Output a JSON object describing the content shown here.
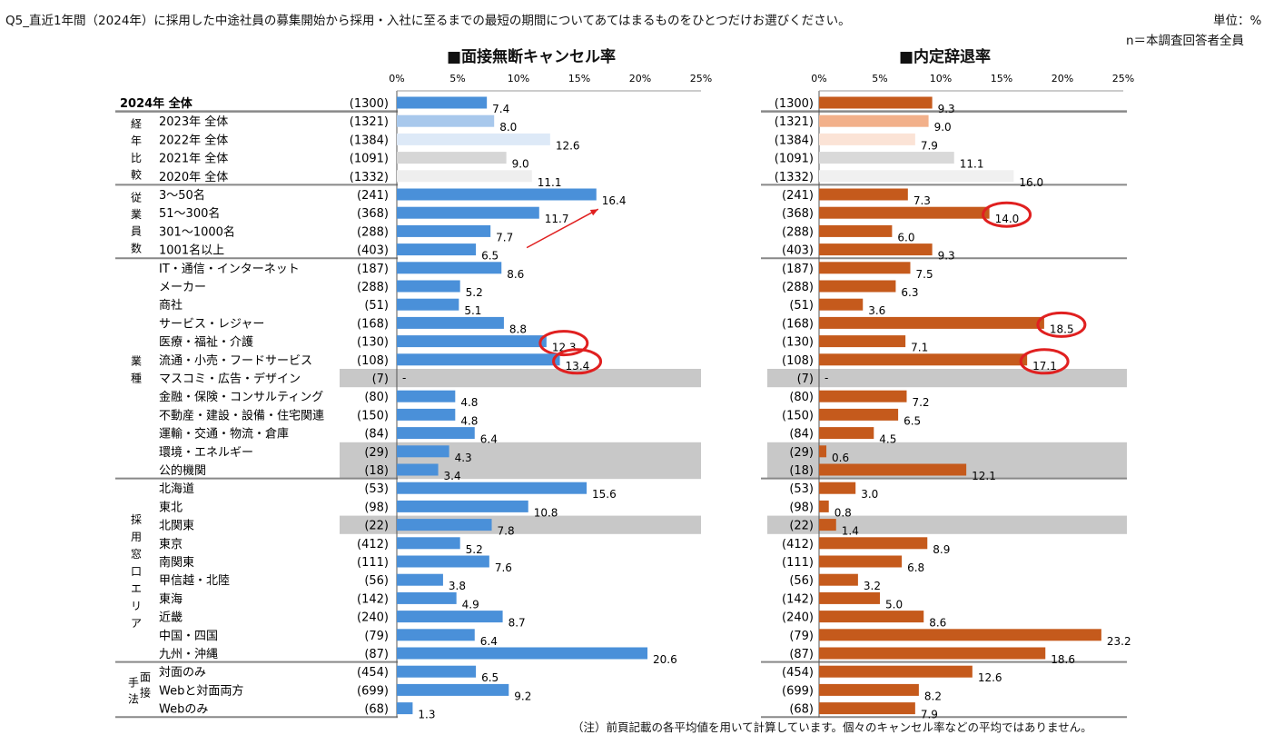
{
  "header": {
    "question": "Q5_直近1年間（2024年）に採用した中途社員の募集開始から採用・入社に至るまでの最短の期間についてあてはまるものをひとつだけお選びください。",
    "unit": "単位：%",
    "base": "n＝本調査回答者全員"
  },
  "footnote": "（注）前頁記載の各平均値を用いて計算しています。個々のキャンセル率などの平均ではありません。",
  "groups": [
    {
      "label": "経年比較",
      "chars": [
        "経",
        "年",
        "比",
        "較"
      ]
    },
    {
      "label": "従業員数",
      "chars": [
        "従",
        "業",
        "員",
        "数"
      ]
    },
    {
      "label": "業種",
      "chars": [
        "業",
        "種"
      ]
    },
    {
      "label": "採用窓口エリア",
      "chars": [
        "採",
        "用",
        "窓",
        "口",
        "エ",
        "リ",
        "ア"
      ]
    },
    {
      "label": "手法面接",
      "chars": [
        "手",
        "法",
        "面",
        "接"
      ]
    }
  ],
  "colors": {
    "left_bar": "#4a90d9",
    "right_bar": "#c55a1c",
    "shade": "#c8c8c8",
    "highlight_circle": "#e02020",
    "arrow": "#e02020"
  },
  "chart_data": [
    {
      "type": "bar",
      "orientation": "horizontal",
      "title": "■面接無断キャンセル率",
      "xlim": [
        0,
        25
      ],
      "xticks": [
        "0%",
        "5%",
        "10%",
        "15%",
        "20%",
        "25%"
      ],
      "categories": [
        "2024年 全体",
        "2023年 全体",
        "2022年 全体",
        "2021年 全体",
        "2020年 全体",
        "3～50名",
        "51～300名",
        "301～1000名",
        "1001名以上",
        "IT・通信・インターネット",
        "メーカー",
        "商社",
        "サービス・レジャー",
        "医療・福祉・介護",
        "流通・小売・フードサービス",
        "マスコミ・広告・デザイン",
        "金融・保険・コンサルティング",
        "不動産・建設・設備・住宅関連",
        "運輸・交通・物流・倉庫",
        "環境・エネルギー",
        "公的機関",
        "北海道",
        "東北",
        "北関東",
        "東京",
        "南関東",
        "甲信越・北陸",
        "東海",
        "近畿",
        "中国・四国",
        "九州・沖縄",
        "対面のみ",
        "Webと対面両方",
        "Webのみ"
      ],
      "n": [
        "(1300)",
        "(1321)",
        "(1384)",
        "(1091)",
        "(1332)",
        "(241)",
        "(368)",
        "(288)",
        "(403)",
        "(187)",
        "(288)",
        "(51)",
        "(168)",
        "(130)",
        "(108)",
        "(7)",
        "(80)",
        "(150)",
        "(84)",
        "(29)",
        "(18)",
        "(53)",
        "(98)",
        "(22)",
        "(412)",
        "(111)",
        "(56)",
        "(142)",
        "(240)",
        "(79)",
        "(87)",
        "(454)",
        "(699)",
        "(68)"
      ],
      "values": [
        7.4,
        8.0,
        12.6,
        9.0,
        11.1,
        16.4,
        11.7,
        7.7,
        6.5,
        8.6,
        5.2,
        5.1,
        8.8,
        12.3,
        13.4,
        null,
        4.8,
        4.8,
        6.4,
        4.3,
        3.4,
        15.6,
        10.8,
        7.8,
        5.2,
        7.6,
        3.8,
        4.9,
        8.7,
        6.4,
        20.6,
        6.5,
        9.2,
        1.3
      ],
      "labels": [
        "7.4",
        "8.0",
        "12.6",
        "9.0",
        "11.1",
        "16.4",
        "11.7",
        "7.7",
        "6.5",
        "8.6",
        "5.2",
        "5.1",
        "8.8",
        "12.3",
        "13.4",
        "-",
        "4.8",
        "4.8",
        "6.4",
        "4.3",
        "3.4",
        "15.6",
        "10.8",
        "7.8",
        "5.2",
        "7.6",
        "3.8",
        "4.9",
        "8.7",
        "6.4",
        "20.6",
        "6.5",
        "9.2",
        "1.3"
      ],
      "past_year_colors": [
        "#a8c8ec",
        "#dde9f7",
        "#d6d6d6",
        "#eeeeee"
      ],
      "circled": [
        "医療・福祉・介護",
        "流通・小売・フードサービス"
      ]
    },
    {
      "type": "bar",
      "orientation": "horizontal",
      "title": "■内定辞退率",
      "xlim": [
        0,
        25
      ],
      "xticks": [
        "0%",
        "5%",
        "10%",
        "15%",
        "20%",
        "25%"
      ],
      "values": [
        9.3,
        9.0,
        7.9,
        11.1,
        16.0,
        7.3,
        14.0,
        6.0,
        9.3,
        7.5,
        6.3,
        3.6,
        18.5,
        7.1,
        17.1,
        null,
        7.2,
        6.5,
        4.5,
        0.6,
        12.1,
        3.0,
        0.8,
        1.4,
        8.9,
        6.8,
        3.2,
        5.0,
        8.6,
        23.2,
        18.6,
        12.6,
        8.2,
        7.9
      ],
      "labels": [
        "9.3",
        "9.0",
        "7.9",
        "11.1",
        "16.0",
        "7.3",
        "14.0",
        "6.0",
        "9.3",
        "7.5",
        "6.3",
        "3.6",
        "18.5",
        "7.1",
        "17.1",
        "-",
        "7.2",
        "6.5",
        "4.5",
        "0.6",
        "12.1",
        "3.0",
        "0.8",
        "1.4",
        "8.9",
        "6.8",
        "3.2",
        "5.0",
        "8.6",
        "23.2",
        "18.6",
        "12.6",
        "8.2",
        "7.9"
      ],
      "past_year_colors": [
        "#f2b08a",
        "#fbe3d6",
        "#d9d9d9",
        "#f0f0f0"
      ],
      "circled": [
        "51～300名",
        "サービス・レジャー",
        "流通・小売・フードサービス"
      ]
    }
  ],
  "shaded_rows": [
    "マスコミ・広告・デザイン",
    "環境・エネルギー",
    "公的機関",
    "北関東"
  ]
}
